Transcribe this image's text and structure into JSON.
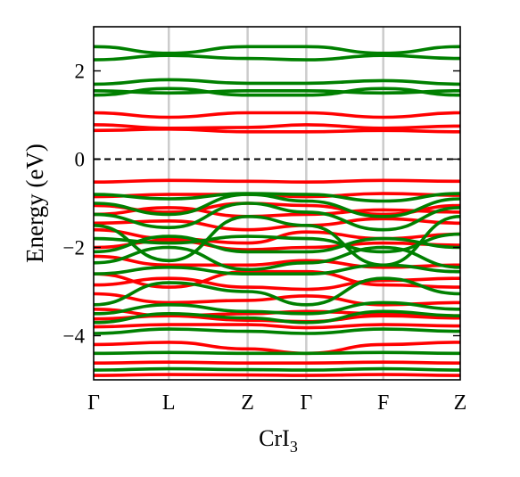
{
  "chart_data": {
    "type": "line",
    "title": "",
    "xlabel": "CrI",
    "xlabel_sub": "3",
    "ylabel": "Energy (eV)",
    "ylim": [
      -5,
      3
    ],
    "yticks": [
      2,
      0,
      -2,
      -4
    ],
    "ytick_labels": [
      "2",
      "0",
      "−2",
      "−4"
    ],
    "kpoints": [
      "Γ",
      "L",
      "Z",
      "Γ",
      "F",
      "Z"
    ],
    "kpath_x": [
      0,
      0.205,
      0.42,
      0.58,
      0.79,
      1.0
    ],
    "fermi_level": 0,
    "colors": {
      "spin_up": "#ff0000",
      "spin_down": "#008000",
      "kline": "#cccccc"
    },
    "series": [
      {
        "color": "#ff0000",
        "bands": [
          [
            -4.9,
            -4.88,
            -4.89,
            -4.9,
            -4.88,
            -4.9
          ],
          [
            -4.62,
            -4.6,
            -4.62,
            -4.62,
            -4.6,
            -4.62
          ],
          [
            -4.2,
            -4.15,
            -4.3,
            -4.4,
            -4.2,
            -4.15
          ],
          [
            -3.8,
            -3.75,
            -3.75,
            -3.82,
            -3.75,
            -3.78
          ],
          [
            -3.62,
            -3.55,
            -3.65,
            -3.68,
            -3.55,
            -3.6
          ],
          [
            -3.4,
            -3.55,
            -3.5,
            -3.45,
            -3.5,
            -3.55
          ],
          [
            -3.05,
            -3.25,
            -3.2,
            -3.1,
            -3.3,
            -3.25
          ],
          [
            -2.85,
            -2.7,
            -2.9,
            -2.95,
            -2.75,
            -2.7
          ],
          [
            -2.6,
            -2.9,
            -2.55,
            -2.55,
            -2.85,
            -2.9
          ],
          [
            -2.2,
            -2.4,
            -2.4,
            -2.3,
            -2.45,
            -2.4
          ],
          [
            -2.0,
            -1.85,
            -2.05,
            -2.0,
            -1.9,
            -1.95
          ],
          [
            -1.6,
            -1.8,
            -1.9,
            -1.65,
            -1.8,
            -1.7
          ],
          [
            -1.45,
            -1.4,
            -1.6,
            -1.5,
            -1.35,
            -1.45
          ],
          [
            -1.25,
            -1.1,
            -1.3,
            -1.25,
            -1.15,
            -1.2
          ],
          [
            -1.05,
            -1.2,
            -1.0,
            -1.05,
            -1.25,
            -1.05
          ],
          [
            -0.85,
            -0.8,
            -0.8,
            -0.85,
            -0.78,
            -0.82
          ],
          [
            -0.52,
            -0.48,
            -0.5,
            -0.52,
            -0.48,
            -0.5
          ],
          [
            0.65,
            0.68,
            0.62,
            0.62,
            0.65,
            0.62
          ],
          [
            0.78,
            0.7,
            0.72,
            0.78,
            0.7,
            0.75
          ],
          [
            1.05,
            0.95,
            1.05,
            1.05,
            0.95,
            1.05
          ]
        ]
      },
      {
        "color": "#008000",
        "bands": [
          [
            -4.78,
            -4.75,
            -4.77,
            -4.78,
            -4.75,
            -4.78
          ],
          [
            -4.4,
            -4.38,
            -4.4,
            -4.4,
            -4.38,
            -4.4
          ],
          [
            -3.95,
            -3.85,
            -3.9,
            -3.95,
            -3.85,
            -3.9
          ],
          [
            -3.7,
            -3.5,
            -3.6,
            -3.7,
            -3.45,
            -3.55
          ],
          [
            -3.5,
            -3.3,
            -3.45,
            -3.5,
            -3.25,
            -3.4
          ],
          [
            -3.3,
            -2.8,
            -3.0,
            -3.3,
            -2.7,
            -3.05
          ],
          [
            -2.6,
            -2.45,
            -2.6,
            -2.6,
            -2.4,
            -2.55
          ],
          [
            -2.35,
            -2.0,
            -2.5,
            -2.35,
            -2.0,
            -2.45
          ],
          [
            -2.1,
            -1.75,
            -2.1,
            -2.1,
            -1.8,
            -2.0
          ],
          [
            -1.8,
            -1.9,
            -1.75,
            -1.8,
            -2.1,
            -1.7
          ],
          [
            -1.5,
            -2.3,
            -1.3,
            -1.5,
            -2.4,
            -1.3
          ],
          [
            -1.25,
            -1.55,
            -1.0,
            -1.2,
            -1.6,
            -1.1
          ],
          [
            -1.0,
            -1.25,
            -0.8,
            -0.95,
            -1.3,
            -0.9
          ],
          [
            -0.8,
            -0.9,
            -0.78,
            -0.8,
            -0.95,
            -0.78
          ],
          [
            1.45,
            1.6,
            1.45,
            1.45,
            1.6,
            1.45
          ],
          [
            1.55,
            1.5,
            1.55,
            1.55,
            1.5,
            1.55
          ],
          [
            1.7,
            1.8,
            1.72,
            1.72,
            1.78,
            1.7
          ],
          [
            2.25,
            2.35,
            2.28,
            2.25,
            2.35,
            2.28
          ],
          [
            2.55,
            2.4,
            2.55,
            2.55,
            2.4,
            2.55
          ]
        ]
      }
    ]
  }
}
